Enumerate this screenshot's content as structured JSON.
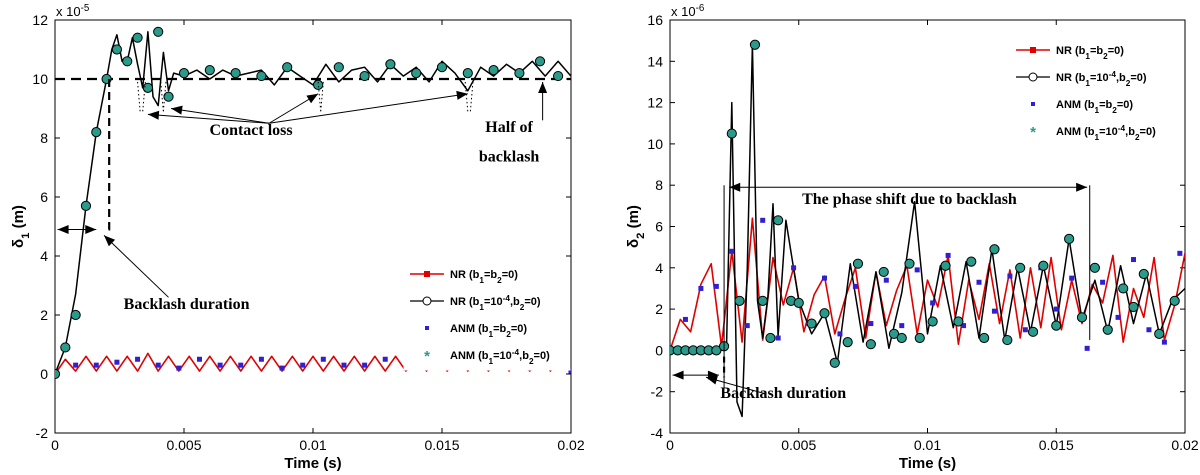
{
  "chart_data": [
    {
      "type": "line",
      "ylabel": "δ1 (m)",
      "xlabel": "Time (s)",
      "xlim": [
        0,
        0.02
      ],
      "ylim": [
        -2,
        12
      ],
      "y_multiplier": "x 10-5",
      "x_ticks": [
        "0",
        "0.005",
        "0.01",
        "0.015",
        "0.02"
      ],
      "x_tick_values": [
        0,
        0.005,
        0.01,
        0.015,
        0.02
      ],
      "y_ticks": [
        "-2",
        "0",
        "2",
        "4",
        "6",
        "8",
        "10",
        "12"
      ],
      "y_tick_values": [
        -2,
        0,
        2,
        4,
        6,
        8,
        10,
        12
      ],
      "reference_line": {
        "y": 10,
        "style": "dashed"
      },
      "legend_position": "lower-right",
      "legend": [
        {
          "label": "NR (b1=b2=0)",
          "color": "#e00000",
          "marker": "square"
        },
        {
          "label": "NR (b1=10-4,b2=0)",
          "color": "#000000",
          "marker": "circle"
        },
        {
          "label": "ANM (b1=b2=0)",
          "color": "#3020d0",
          "marker": "point"
        },
        {
          "label": "ANM (b1=10-4,b2=0)",
          "color": "#2a9a8a",
          "marker": "star"
        }
      ],
      "annotations": [
        {
          "text": "Contact loss",
          "x": 0.0076,
          "y": 8.1
        },
        {
          "text": "Half of",
          "x": 0.0176,
          "y": 8.2
        },
        {
          "text": "backlash",
          "x": 0.0176,
          "y": 7.2
        },
        {
          "text": "Backlash duration",
          "x": 0.0051,
          "y": 2.2
        }
      ],
      "series": [
        {
          "name": "NR (b1=b2=0)",
          "color": "#e00000",
          "x": [
            0,
            0.0004,
            0.0008,
            0.0012,
            0.0016,
            0.002,
            0.0024,
            0.0028,
            0.0032,
            0.0036,
            0.004,
            0.0044,
            0.0048,
            0.0052,
            0.0056,
            0.006,
            0.0064,
            0.0068,
            0.0072,
            0.0076,
            0.008,
            0.0084,
            0.0088,
            0.0092,
            0.0096,
            0.01,
            0.0104,
            0.0108,
            0.0112,
            0.0116,
            0.012,
            0.0124,
            0.0128,
            0.0132,
            0.0136,
            0.014,
            0.0144,
            0.0148,
            0.0152,
            0.0156,
            0.016,
            0.0164,
            0.0168,
            0.0172,
            0.0176,
            0.018,
            0.0184,
            0.0188,
            0.0192,
            0.0196,
            0.02
          ],
          "y": [
            0,
            0.5,
            0.1,
            0.6,
            0.1,
            0.6,
            0.1,
            0.6,
            0.1,
            0.7,
            0.1,
            0.6,
            0.1,
            0.6,
            0.1,
            0.6,
            0.1,
            0.6,
            0.1,
            0.6,
            0.1,
            0.6,
            0.1,
            0.6,
            0.1,
            0.6,
            0.1,
            0.6,
            0.1,
            0.6,
            0.1,
            0.6,
            0.1,
            0.6,
            0.1,
            0.6,
            0.1,
            0.6,
            0.1,
            0.6,
            0.1,
            0.6,
            0.1,
            0.6,
            0.1,
            0.6,
            0.1,
            0.6,
            0.1,
            0.6,
            0.05
          ]
        },
        {
          "name": "NR (b1=10-4,b2=0)",
          "color": "#000000",
          "x": [
            0,
            0.0004,
            0.0008,
            0.0012,
            0.0016,
            0.002,
            0.0022,
            0.0024,
            0.0026,
            0.0028,
            0.003,
            0.0032,
            0.0034,
            0.0036,
            0.0038,
            0.004,
            0.0042,
            0.0044,
            0.0046,
            0.005,
            0.0055,
            0.006,
            0.0065,
            0.007,
            0.0075,
            0.008,
            0.0085,
            0.009,
            0.0095,
            0.01,
            0.0105,
            0.011,
            0.0115,
            0.012,
            0.0125,
            0.013,
            0.0135,
            0.014,
            0.0145,
            0.015,
            0.0155,
            0.016,
            0.0165,
            0.017,
            0.0175,
            0.018,
            0.0185,
            0.019,
            0.0195,
            0.02
          ],
          "y": [
            0,
            0.9,
            2.7,
            5.7,
            8.2,
            10.0,
            11.0,
            11.5,
            10.6,
            10.6,
            11.4,
            10.5,
            9.7,
            11.6,
            9.4,
            9.1,
            10.9,
            9.6,
            10.2,
            10.1,
            10.3,
            10.0,
            10.3,
            10.1,
            10.2,
            10.3,
            9.8,
            10.4,
            10.1,
            9.8,
            10.5,
            9.9,
            10.3,
            10.4,
            9.9,
            10.5,
            10.1,
            10.4,
            9.9,
            10.6,
            10.2,
            9.6,
            10.4,
            10.1,
            10.5,
            10.2,
            10.6,
            10.1,
            10.6,
            10.1
          ]
        },
        {
          "name": "ANM (b1=b2=0)",
          "color": "#3020d0",
          "x": [
            0,
            0.0008,
            0.0016,
            0.0024,
            0.0032,
            0.004,
            0.0048,
            0.0056,
            0.0064,
            0.0072,
            0.008,
            0.0088,
            0.0096,
            0.0104,
            0.0112,
            0.012,
            0.0128,
            0.0136,
            0.0144,
            0.0152,
            0.016,
            0.0168,
            0.0176,
            0.0184,
            0.0192,
            0.02
          ],
          "y": [
            0,
            0.3,
            0.3,
            0.4,
            0.5,
            0.3,
            0.2,
            0.5,
            0.3,
            0.3,
            0.5,
            0.2,
            0.3,
            0.5,
            0.3,
            0.3,
            0.5,
            0.2,
            0.3,
            0.5,
            0.3,
            0.3,
            0.5,
            0.2,
            0.3,
            0.1
          ]
        },
        {
          "name": "ANM (b1=10-4,b2=0)",
          "color": "#2a9a8a",
          "x": [
            0,
            0.0004,
            0.0008,
            0.0012,
            0.0016,
            0.002,
            0.0024,
            0.0028,
            0.0032,
            0.0036,
            0.004,
            0.0044,
            0.005,
            0.006,
            0.007,
            0.008,
            0.009,
            0.0102,
            0.011,
            0.012,
            0.013,
            0.014,
            0.015,
            0.016,
            0.017,
            0.018,
            0.0188,
            0.0195
          ],
          "y": [
            0,
            0.9,
            2.0,
            5.7,
            8.2,
            10.0,
            11.0,
            10.6,
            11.4,
            9.7,
            11.6,
            9.4,
            10.2,
            10.3,
            10.2,
            10.1,
            10.4,
            9.8,
            10.4,
            10.1,
            10.5,
            10.2,
            10.4,
            10.2,
            10.3,
            10.2,
            10.6,
            10.1
          ]
        }
      ]
    },
    {
      "type": "line",
      "ylabel": "δ2 (m)",
      "xlabel": "Time (s)",
      "xlim": [
        0,
        0.02
      ],
      "ylim": [
        -4,
        16
      ],
      "y_multiplier": "x 10-6",
      "x_ticks": [
        "0",
        "0.005",
        "0.01",
        "0.015",
        "0.02"
      ],
      "x_tick_values": [
        0,
        0.005,
        0.01,
        0.015,
        0.02
      ],
      "y_ticks": [
        "-4",
        "-2",
        "0",
        "2",
        "4",
        "6",
        "8",
        "10",
        "12",
        "14",
        "16"
      ],
      "y_tick_values": [
        -4,
        -2,
        0,
        2,
        4,
        6,
        8,
        10,
        12,
        14,
        16
      ],
      "legend_position": "top-right",
      "legend": [
        {
          "label": "NR (b1=b2=0)",
          "color": "#e00000",
          "marker": "square"
        },
        {
          "label": "NR (b1=10-4,b2=0)",
          "color": "#000000",
          "marker": "circle"
        },
        {
          "label": "ANM (b1=b2=0)",
          "color": "#3020d0",
          "marker": "point"
        },
        {
          "label": "ANM (b1=10-4,b2=0)",
          "color": "#2a9a8a",
          "marker": "star"
        }
      ],
      "annotations": [
        {
          "text": "The phase shift due to backlash",
          "x": 0.0093,
          "y": 7.1
        },
        {
          "text": "Backlash duration",
          "x": 0.0044,
          "y": -2.3
        }
      ],
      "series": [
        {
          "name": "NR (b1=b2=0)",
          "color": "#e00000",
          "x": [
            0,
            0.0004,
            0.0008,
            0.0012,
            0.0016,
            0.002,
            0.0024,
            0.0028,
            0.0032,
            0.0036,
            0.004,
            0.0044,
            0.0048,
            0.0052,
            0.0056,
            0.006,
            0.0064,
            0.0068,
            0.0072,
            0.0076,
            0.008,
            0.0084,
            0.0088,
            0.0092,
            0.0096,
            0.01,
            0.0104,
            0.0108,
            0.0112,
            0.0116,
            0.012,
            0.0124,
            0.0128,
            0.0132,
            0.0136,
            0.014,
            0.0144,
            0.0148,
            0.0152,
            0.0156,
            0.016,
            0.0164,
            0.0168,
            0.0172,
            0.0176,
            0.018,
            0.0184,
            0.0188,
            0.0192,
            0.0196,
            0.02
          ],
          "y": [
            0,
            1.5,
            0.9,
            3.2,
            4.2,
            0.2,
            4.8,
            0.4,
            6.4,
            0.5,
            4.5,
            2.2,
            4.0,
            0.9,
            2.7,
            3.6,
            0.8,
            2.5,
            4.0,
            0.6,
            3.8,
            1.2,
            2.9,
            4.1,
            0.8,
            3.4,
            2.1,
            4.6,
            0.3,
            3.4,
            1.5,
            4.2,
            1.3,
            3.9,
            0.6,
            4.0,
            1.1,
            4.5,
            1.0,
            3.4,
            1.3,
            3.2,
            2.3,
            4.6,
            0.4,
            3.0,
            1.6,
            4.5,
            0.5,
            2.2,
            4.7
          ]
        },
        {
          "name": "NR (b1=10-4,b2=0)",
          "color": "#000000",
          "x": [
            0,
            0.0004,
            0.0008,
            0.0012,
            0.0016,
            0.002,
            0.0022,
            0.0024,
            0.0026,
            0.0028,
            0.003,
            0.0032,
            0.0034,
            0.0036,
            0.0038,
            0.004,
            0.0042,
            0.0045,
            0.005,
            0.0055,
            0.006,
            0.0065,
            0.007,
            0.0075,
            0.008,
            0.0085,
            0.009,
            0.0095,
            0.01,
            0.0105,
            0.011,
            0.0115,
            0.012,
            0.0125,
            0.013,
            0.0135,
            0.014,
            0.0145,
            0.015,
            0.0155,
            0.016,
            0.0165,
            0.017,
            0.0175,
            0.018,
            0.0185,
            0.019,
            0.0195,
            0.02
          ],
          "y": [
            0,
            0,
            0,
            0,
            0,
            0,
            0.3,
            12.0,
            -2.5,
            -3.2,
            4.0,
            14.8,
            2.4,
            0.6,
            2.6,
            7.1,
            0.7,
            6.3,
            2.4,
            0.8,
            1.8,
            -0.6,
            4.2,
            0.4,
            3.8,
            0.1,
            2.8,
            7.2,
            0.8,
            4.1,
            1.1,
            4.3,
            0.6,
            4.9,
            0.5,
            4.0,
            0.9,
            4.1,
            1.2,
            5.4,
            1.5,
            3.4,
            0.9,
            4.1,
            1.3,
            3.7,
            0.8,
            2.4,
            3.0
          ]
        },
        {
          "name": "ANM (b1=b2=0)",
          "color": "#3020d0",
          "x": [
            0,
            0.0006,
            0.0012,
            0.0018,
            0.0024,
            0.003,
            0.0036,
            0.0042,
            0.0048,
            0.0054,
            0.006,
            0.0066,
            0.0072,
            0.0078,
            0.0084,
            0.009,
            0.0096,
            0.0102,
            0.0108,
            0.0114,
            0.012,
            0.0126,
            0.0132,
            0.0138,
            0.0144,
            0.015,
            0.0156,
            0.0162,
            0.0168,
            0.0174,
            0.018,
            0.0186,
            0.0192,
            0.0198
          ],
          "y": [
            0,
            1.5,
            3.0,
            3.1,
            4.8,
            1.2,
            6.3,
            0.6,
            4.0,
            1.3,
            3.5,
            0.8,
            3.1,
            1.3,
            3.4,
            1.2,
            3.9,
            2.3,
            4.6,
            1.2,
            3.3,
            1.9,
            3.6,
            1.0,
            4.0,
            2.0,
            3.5,
            0.1,
            3.3,
            1.6,
            4.4,
            1.0,
            0.4,
            4.7
          ]
        },
        {
          "name": "ANM (b1=10-4,b2=0)",
          "color": "#2a9a8a",
          "x": [
            0,
            0.0003,
            0.0006,
            0.0009,
            0.0012,
            0.0015,
            0.0018,
            0.0021,
            0.0024,
            0.0027,
            0.0033,
            0.0036,
            0.0039,
            0.0042,
            0.0047,
            0.005,
            0.0055,
            0.006,
            0.0064,
            0.0069,
            0.0073,
            0.0078,
            0.0083,
            0.0087,
            0.009,
            0.0093,
            0.0097,
            0.0102,
            0.0107,
            0.0112,
            0.0117,
            0.0122,
            0.0126,
            0.0131,
            0.0136,
            0.0141,
            0.0145,
            0.015,
            0.0155,
            0.016,
            0.0165,
            0.017,
            0.0176,
            0.018,
            0.0184,
            0.019,
            0.0196
          ],
          "y": [
            0,
            0,
            0,
            0,
            0,
            0,
            0,
            0.2,
            10.5,
            2.4,
            14.8,
            2.4,
            0.6,
            6.3,
            2.4,
            2.3,
            1.3,
            1.8,
            -0.6,
            0.4,
            4.2,
            0.3,
            3.8,
            0.8,
            0.6,
            4.2,
            0.6,
            1.4,
            4.1,
            1.4,
            4.3,
            0.6,
            4.9,
            0.5,
            4.0,
            0.9,
            4.1,
            1.2,
            5.4,
            1.6,
            4.0,
            1.0,
            3.0,
            2.1,
            3.7,
            0.8,
            2.4
          ]
        }
      ]
    }
  ]
}
